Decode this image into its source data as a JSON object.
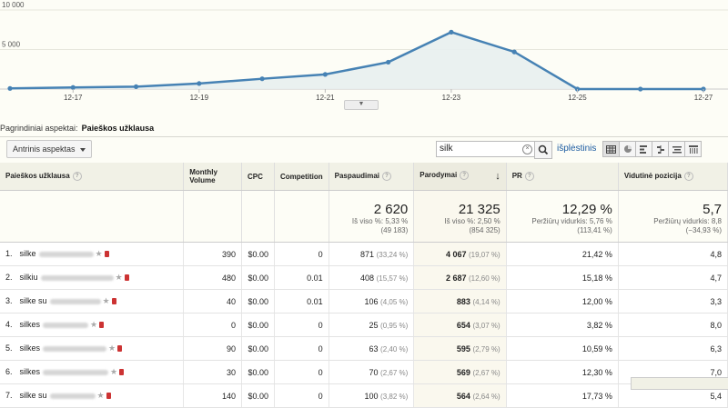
{
  "chart_data": {
    "type": "area",
    "x": [
      "12-16",
      "12-17",
      "12-18",
      "12-19",
      "12-20",
      "12-21",
      "12-22",
      "12-23",
      "12-24",
      "12-25",
      "12-26",
      "12-27"
    ],
    "tick_labels": [
      "12-17",
      "12-19",
      "12-21",
      "12-23",
      "12-25",
      "12-27"
    ],
    "y_ticks": [
      "10 000",
      "5 000"
    ],
    "ylim": [
      0,
      10000
    ],
    "series": [
      {
        "values": [
          80,
          200,
          300,
          700,
          1300,
          1850,
          3400,
          7200,
          4700,
          0,
          0,
          0
        ]
      }
    ],
    "color": "#4682b4"
  },
  "dimensions": {
    "label": "Pagrindiniai aspektai:",
    "value": "Paieškos užklausa"
  },
  "secondary_button": "Antrinis aspektas",
  "search": {
    "value": "silk"
  },
  "advanced_link": "išplėstinis",
  "columns": [
    "Paieškos užklausa",
    "Monthly Volume",
    "CPC",
    "Competition",
    "Paspaudimai",
    "Parodymai",
    "PR",
    "Vidutinė pozicija"
  ],
  "summary": {
    "clicks": {
      "value": "2 620",
      "sub1": "Iš viso %: 5,33 %",
      "sub2": "(49 183)"
    },
    "impressions": {
      "value": "21 325",
      "sub1": "Iš viso %: 2,50 %",
      "sub2": "(854 325)"
    },
    "ctr": {
      "value": "12,29 %",
      "sub1": "Peržiūrų vidurkis: 5,76 %",
      "sub2": "(113,41 %)"
    },
    "position": {
      "value": "5,7",
      "sub1": "Peržiūrų vidurkis: 8,8",
      "sub2": "(−34,93 %)"
    }
  },
  "rows": [
    {
      "n": "1.",
      "kw": "silke",
      "vol": "390",
      "cpc": "$0.00",
      "comp": "0",
      "clicks": "871",
      "cp": "(33,24 %)",
      "imp": "4 067",
      "ip": "(19,07 %)",
      "ctr": "21,42 %",
      "pos": "4,8"
    },
    {
      "n": "2.",
      "kw": "silkiu",
      "vol": "480",
      "cpc": "$0.00",
      "comp": "0.01",
      "clicks": "408",
      "cp": "(15,57 %)",
      "imp": "2 687",
      "ip": "(12,60 %)",
      "ctr": "15,18 %",
      "pos": "4,7"
    },
    {
      "n": "3.",
      "kw": "silke su",
      "vol": "40",
      "cpc": "$0.00",
      "comp": "0.01",
      "clicks": "106",
      "cp": "(4,05 %)",
      "imp": "883",
      "ip": "(4,14 %)",
      "ctr": "12,00 %",
      "pos": "3,3"
    },
    {
      "n": "4.",
      "kw": "silkes",
      "vol": "0",
      "cpc": "$0.00",
      "comp": "0",
      "clicks": "25",
      "cp": "(0,95 %)",
      "imp": "654",
      "ip": "(3,07 %)",
      "ctr": "3,82 %",
      "pos": "8,0"
    },
    {
      "n": "5.",
      "kw": "silkes",
      "vol": "90",
      "cpc": "$0.00",
      "comp": "0",
      "clicks": "63",
      "cp": "(2,40 %)",
      "imp": "595",
      "ip": "(2,79 %)",
      "ctr": "10,59 %",
      "pos": "6,3"
    },
    {
      "n": "6.",
      "kw": "silkes",
      "vol": "30",
      "cpc": "$0.00",
      "comp": "0",
      "clicks": "70",
      "cp": "(2,67 %)",
      "imp": "569",
      "ip": "(2,67 %)",
      "ctr": "12,30 %",
      "pos": "7,0"
    },
    {
      "n": "7.",
      "kw": "silke su",
      "vol": "140",
      "cpc": "$0.00",
      "comp": "0",
      "clicks": "100",
      "cp": "(3,82 %)",
      "imp": "564",
      "ip": "(2,64 %)",
      "ctr": "17,73 %",
      "pos": "5,4"
    }
  ]
}
